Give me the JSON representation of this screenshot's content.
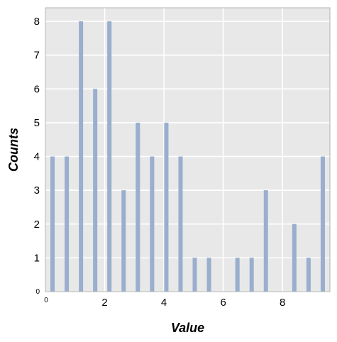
{
  "chart_data": {
    "type": "bar",
    "xlabel": "Value",
    "ylabel": "Counts",
    "xlim": [
      0,
      9.6
    ],
    "ylim": [
      0,
      8.4
    ],
    "xticks": [
      0,
      2,
      4,
      6,
      8
    ],
    "yticks": [
      0,
      1,
      2,
      3,
      4,
      5,
      6,
      7,
      8
    ],
    "grid": true,
    "bar_color": "#9aaecd",
    "plot_background": "#e8e8e8",
    "bin_width": 0.48,
    "x": [
      0.24,
      0.72,
      1.2,
      1.68,
      2.16,
      2.64,
      3.12,
      3.6,
      4.08,
      4.56,
      5.04,
      5.52,
      6.0,
      6.48,
      6.96,
      7.44,
      7.92,
      8.4,
      8.88,
      9.36
    ],
    "values": [
      4,
      4,
      8,
      6,
      8,
      3,
      5,
      4,
      5,
      4,
      1,
      1,
      0,
      1,
      1,
      3,
      0,
      2,
      1,
      4
    ]
  }
}
